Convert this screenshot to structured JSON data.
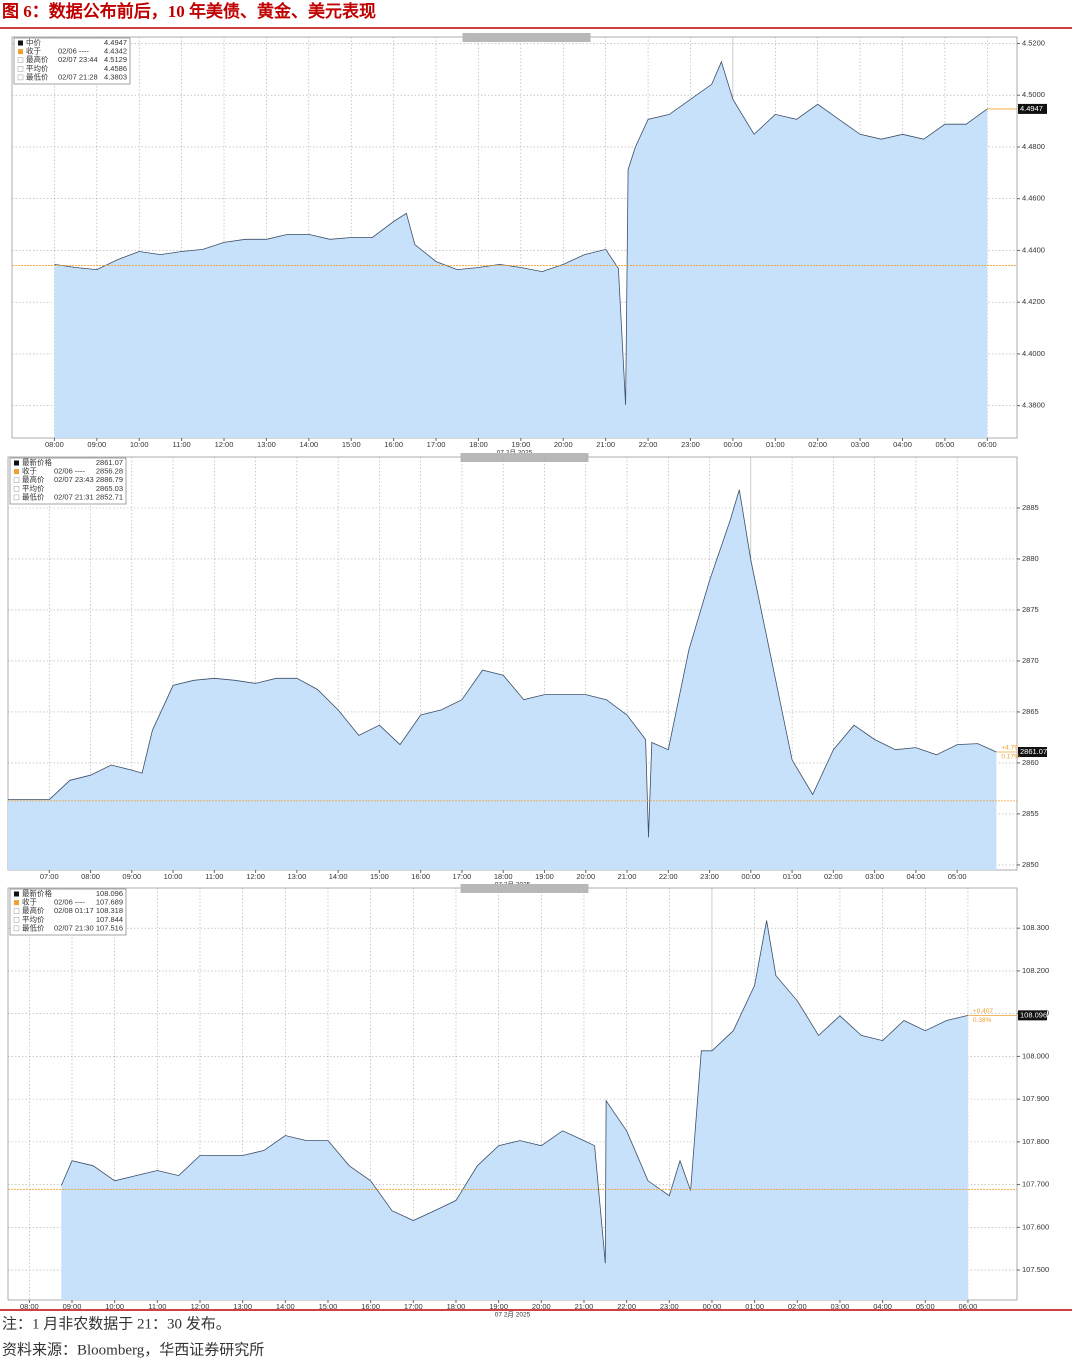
{
  "figure_title": "图 6：数据公布前后，10 年美债、黄金、美元表现",
  "note": "注：1 月非农数据于 21：30 发布。",
  "source": "资料来源：Bloomberg，华西证券研究所",
  "chart_data": [
    {
      "type": "area",
      "xlabel": "07 2月 2025",
      "color": "#c8e1fb",
      "line_color": "#3c4f68",
      "ref_color": "#f0a030",
      "grid": true,
      "stats": [
        {
          "label": "中价",
          "value": 4.4947
        },
        {
          "label": "收于",
          "date": "02/06 ----",
          "value": 4.4342
        },
        {
          "label": "最高价",
          "date": "02/07 23:44",
          "value": 4.5129
        },
        {
          "label": "平均价",
          "value": 4.4586
        },
        {
          "label": "最低价",
          "date": "02/07 21:28",
          "value": 4.3803
        }
      ],
      "xlim": [
        7.0,
        30.7
      ],
      "xticks": [
        {
          "value": 8,
          "label": "08:00"
        },
        {
          "value": 9,
          "label": "09:00"
        },
        {
          "value": 10,
          "label": "10:00"
        },
        {
          "value": 11,
          "label": "11:00"
        },
        {
          "value": 12,
          "label": "12:00"
        },
        {
          "value": 13,
          "label": "13:00"
        },
        {
          "value": 14,
          "label": "14:00"
        },
        {
          "value": 15,
          "label": "15:00"
        },
        {
          "value": 16,
          "label": "16:00"
        },
        {
          "value": 17,
          "label": "17:00"
        },
        {
          "value": 18,
          "label": "18:00"
        },
        {
          "value": 19,
          "label": "19:00"
        },
        {
          "value": 20,
          "label": "20:00"
        },
        {
          "value": 21,
          "label": "21:00"
        },
        {
          "value": 22,
          "label": "22:00"
        },
        {
          "value": 23,
          "label": "23:00"
        },
        {
          "value": 24,
          "label": "00:00"
        },
        {
          "value": 25,
          "label": "01:00"
        },
        {
          "value": 26,
          "label": "02:00"
        },
        {
          "value": 27,
          "label": "03:00"
        },
        {
          "value": 28,
          "label": "04:00"
        },
        {
          "value": 29,
          "label": "05:00"
        },
        {
          "value": 30,
          "label": "06:00"
        }
      ],
      "ylim": [
        4.3675,
        4.5225
      ],
      "yticks": [
        {
          "value": 4.38,
          "label": "4.3800"
        },
        {
          "value": 4.4,
          "label": "4.4000"
        },
        {
          "value": 4.42,
          "label": "4.4200"
        },
        {
          "value": 4.44,
          "label": "4.4400"
        },
        {
          "value": 4.46,
          "label": "4.4600"
        },
        {
          "value": 4.48,
          "label": "4.4800"
        },
        {
          "value": 4.5,
          "label": "4.5000"
        },
        {
          "value": 4.52,
          "label": "4.5200"
        }
      ],
      "x": [
        8,
        8.5,
        9,
        9.5,
        10,
        10.5,
        11,
        11.5,
        12,
        12.5,
        13,
        13.5,
        14,
        14.5,
        15,
        15.5,
        16,
        16.3,
        16.5,
        17,
        17.5,
        18,
        18.5,
        19,
        19.5,
        20,
        20.5,
        21,
        21.3,
        21.47,
        21.53,
        21.7,
        22,
        22.5,
        23,
        23.5,
        23.73,
        24,
        24.5,
        25,
        25.5,
        26,
        26.5,
        27,
        27.5,
        28,
        28.5,
        29,
        29.5,
        30
      ],
      "values": [
        4.4346,
        4.4334,
        4.4326,
        4.4365,
        4.4396,
        4.4384,
        4.4396,
        4.4404,
        4.4431,
        4.4443,
        4.4443,
        4.4462,
        4.4462,
        4.4443,
        4.445,
        4.445,
        4.4512,
        4.4543,
        4.4423,
        4.4357,
        4.4326,
        4.4334,
        4.4346,
        4.4334,
        4.4318,
        4.4346,
        4.4384,
        4.4404,
        4.433,
        4.3803,
        4.4713,
        4.48,
        4.4907,
        4.4926,
        4.4984,
        4.5042,
        4.5129,
        4.4984,
        4.4849,
        4.4926,
        4.4907,
        4.4965,
        4.4907,
        4.4849,
        4.483,
        4.4849,
        4.483,
        4.4888,
        4.4888,
        4.4947
      ]
    },
    {
      "type": "area",
      "xlabel": "07 2月 2025",
      "color": "#c8e1fb",
      "line_color": "#3c4f68",
      "ref_color": "#f0a030",
      "grid": true,
      "stats": [
        {
          "label": "最新价格",
          "value": 2861.07
        },
        {
          "label": "收于",
          "date": "02/06 ----",
          "value": 2856.28
        },
        {
          "label": "最高价",
          "date": "02/07 23:43",
          "value": 2886.79
        },
        {
          "label": "平均价",
          "value": 2865.03
        },
        {
          "label": "最低价",
          "date": "02/07 21:31",
          "value": 2852.71
        }
      ],
      "change_labels": [
        "+4.79",
        "0.17%"
      ],
      "xlim": [
        6,
        30.45
      ],
      "xticks": [
        {
          "value": 7,
          "label": "07:00"
        },
        {
          "value": 8,
          "label": "08:00"
        },
        {
          "value": 9,
          "label": "09:00"
        },
        {
          "value": 10,
          "label": "10:00"
        },
        {
          "value": 11,
          "label": "11:00"
        },
        {
          "value": 12,
          "label": "12:00"
        },
        {
          "value": 13,
          "label": "13:00"
        },
        {
          "value": 14,
          "label": "14:00"
        },
        {
          "value": 15,
          "label": "15:00"
        },
        {
          "value": 16,
          "label": "16:00"
        },
        {
          "value": 17,
          "label": "17:00"
        },
        {
          "value": 18,
          "label": "18:00"
        },
        {
          "value": 19,
          "label": "19:00"
        },
        {
          "value": 20,
          "label": "20:00"
        },
        {
          "value": 21,
          "label": "21:00"
        },
        {
          "value": 22,
          "label": "22:00"
        },
        {
          "value": 23,
          "label": "23:00"
        },
        {
          "value": 24,
          "label": "00:00"
        },
        {
          "value": 25,
          "label": "01:00"
        },
        {
          "value": 26,
          "label": "02:00"
        },
        {
          "value": 27,
          "label": "03:00"
        },
        {
          "value": 28,
          "label": "04:00"
        },
        {
          "value": 29,
          "label": "05:00"
        }
      ],
      "ylim": [
        2849.5,
        2890
      ],
      "yticks": [
        2850,
        2855,
        2860,
        2865,
        2870,
        2875,
        2880,
        2885
      ],
      "x": [
        6,
        7,
        7.5,
        8,
        8.5,
        9,
        9.25,
        9.5,
        10,
        10.5,
        11,
        11.5,
        12,
        12.5,
        13,
        13.5,
        14,
        14.5,
        15,
        15.5,
        16,
        16.5,
        17,
        17.5,
        18,
        18.5,
        19,
        19.5,
        20,
        20.5,
        21,
        21.45,
        21.52,
        21.6,
        22,
        22.5,
        23,
        23.5,
        23.72,
        24,
        24.5,
        25,
        25.5,
        26,
        26.5,
        27,
        27.5,
        28,
        28.5,
        29,
        29.5,
        29.95
      ],
      "values": [
        2856.4,
        2856.4,
        2858.3,
        2858.8,
        2859.8,
        2859.3,
        2859.0,
        2863.2,
        2867.6,
        2868.1,
        2868.3,
        2868.1,
        2867.8,
        2868.3,
        2868.3,
        2867.2,
        2865.2,
        2862.7,
        2863.7,
        2861.8,
        2864.7,
        2865.2,
        2866.2,
        2869.1,
        2868.6,
        2866.2,
        2866.7,
        2866.7,
        2866.7,
        2866.2,
        2864.7,
        2862.3,
        2852.71,
        2862.0,
        2861.3,
        2871.1,
        2877.9,
        2883.8,
        2886.79,
        2879.9,
        2870.1,
        2860.3,
        2856.9,
        2861.3,
        2863.7,
        2862.3,
        2861.3,
        2861.5,
        2860.8,
        2861.8,
        2861.9,
        2861.07
      ]
    },
    {
      "type": "area",
      "xlabel": "07 2月 2025",
      "color": "#c8e1fb",
      "line_color": "#3c4f68",
      "ref_color": "#f0a030",
      "grid": true,
      "stats": [
        {
          "label": "最新价格",
          "value": 108.096
        },
        {
          "label": "收于",
          "date": "02/06 ----",
          "value": 107.689
        },
        {
          "label": "最高价",
          "date": "02/08 01:17",
          "value": 108.318
        },
        {
          "label": "平均价",
          "value": 107.844
        },
        {
          "label": "最低价",
          "date": "02/07 21:30",
          "value": 107.516
        }
      ],
      "change_labels": [
        "+0.407",
        "0.38%"
      ],
      "xlim": [
        7.5,
        31.15
      ],
      "xticks": [
        {
          "value": 8,
          "label": "08:00"
        },
        {
          "value": 9,
          "label": "09:00"
        },
        {
          "value": 10,
          "label": "10:00"
        },
        {
          "value": 11,
          "label": "11:00"
        },
        {
          "value": 12,
          "label": "12:00"
        },
        {
          "value": 13,
          "label": "13:00"
        },
        {
          "value": 14,
          "label": "14:00"
        },
        {
          "value": 15,
          "label": "15:00"
        },
        {
          "value": 16,
          "label": "16:00"
        },
        {
          "value": 17,
          "label": "17:00"
        },
        {
          "value": 18,
          "label": "18:00"
        },
        {
          "value": 19,
          "label": "19:00"
        },
        {
          "value": 20,
          "label": "20:00"
        },
        {
          "value": 21,
          "label": "21:00"
        },
        {
          "value": 22,
          "label": "22:00"
        },
        {
          "value": 23,
          "label": "23:00"
        },
        {
          "value": 24,
          "label": "00:00"
        },
        {
          "value": 25,
          "label": "01:00"
        },
        {
          "value": 26,
          "label": "02:00"
        },
        {
          "value": 27,
          "label": "03:00"
        },
        {
          "value": 28,
          "label": "04:00"
        },
        {
          "value": 29,
          "label": "05:00"
        },
        {
          "value": 30,
          "label": "06:00"
        }
      ],
      "ylim": [
        107.43,
        108.394
      ],
      "yticks": [
        {
          "value": 107.5,
          "label": "107.500"
        },
        {
          "value": 107.6,
          "label": "107.600"
        },
        {
          "value": 107.7,
          "label": "107.700"
        },
        {
          "value": 107.8,
          "label": "107.800"
        },
        {
          "value": 107.9,
          "label": "107.900"
        },
        {
          "value": 108.0,
          "label": "108.000"
        },
        {
          "value": 108.1,
          "label": "108.100"
        },
        {
          "value": 108.2,
          "label": "108.200"
        },
        {
          "value": 108.3,
          "label": "108.300"
        }
      ],
      "x": [
        8.75,
        9,
        9.5,
        10,
        10.5,
        11,
        11.5,
        12,
        12.5,
        13,
        13.5,
        14,
        14.5,
        15,
        15.5,
        16,
        16.5,
        17,
        17.5,
        18,
        18.5,
        19,
        19.5,
        20,
        20.5,
        21,
        21.25,
        21.5,
        21.52,
        22,
        22.5,
        23,
        23.25,
        23.5,
        23.75,
        24,
        24.5,
        25,
        25.28,
        25.5,
        26,
        26.5,
        27,
        27.5,
        28,
        28.5,
        29,
        29.5,
        30
      ],
      "values": [
        107.698,
        107.756,
        107.744,
        107.709,
        107.721,
        107.733,
        107.721,
        107.768,
        107.768,
        107.768,
        107.78,
        107.815,
        107.803,
        107.803,
        107.744,
        107.709,
        107.639,
        107.616,
        107.639,
        107.663,
        107.744,
        107.791,
        107.803,
        107.791,
        107.826,
        107.803,
        107.791,
        107.516,
        107.896,
        107.826,
        107.709,
        107.674,
        107.756,
        107.686,
        108.013,
        108.013,
        108.06,
        108.166,
        108.318,
        108.189,
        108.13,
        108.049,
        108.095,
        108.049,
        108.037,
        108.084,
        108.06,
        108.084,
        108.096
      ]
    }
  ]
}
